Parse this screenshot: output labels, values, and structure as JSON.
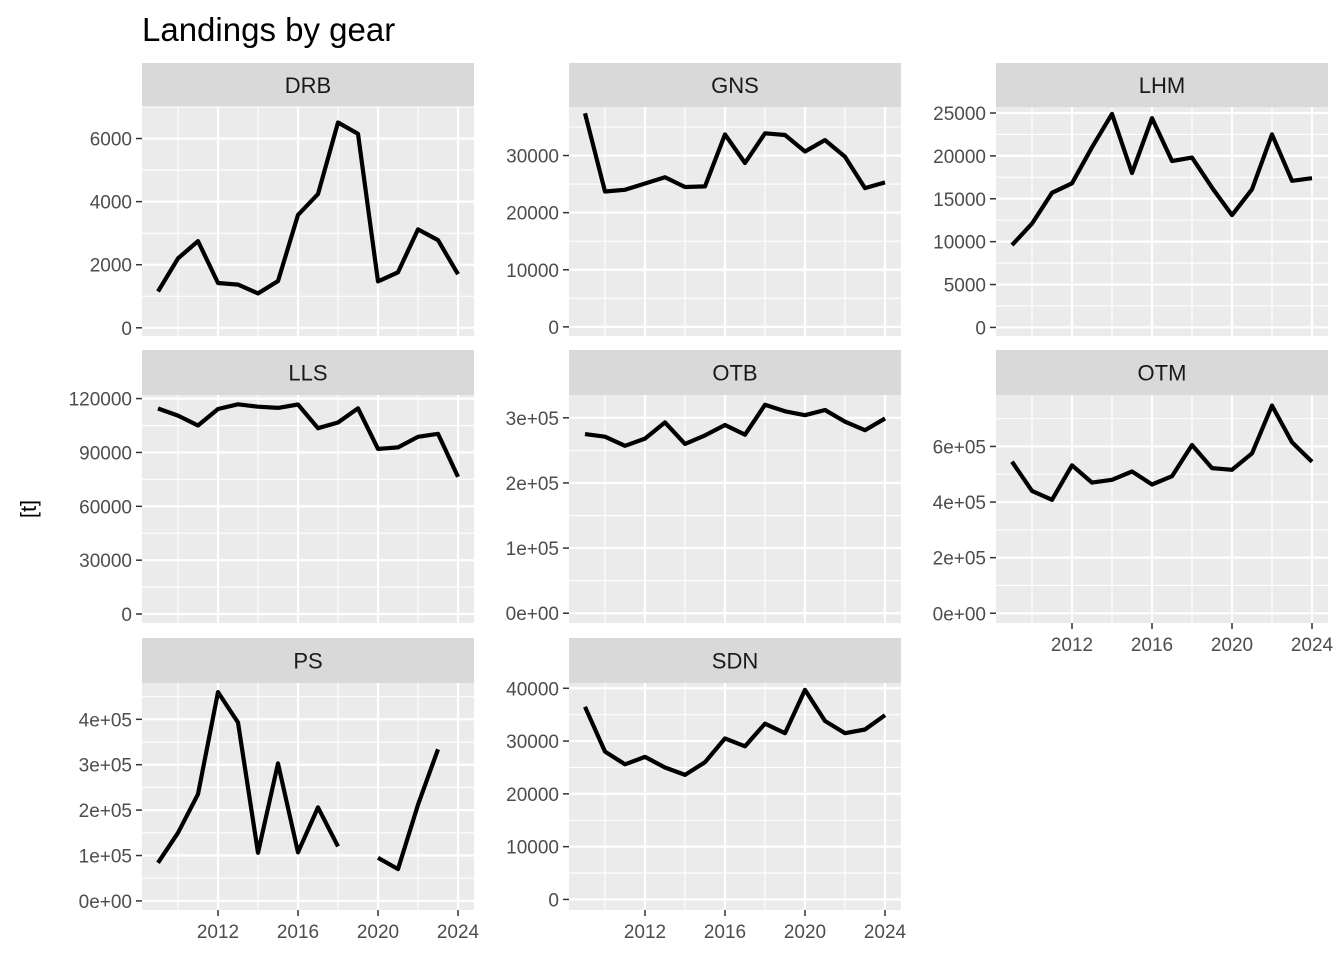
{
  "chart_data": {
    "type": "line",
    "title": "Landings by gear",
    "xlabel": "",
    "ylabel": "[t]",
    "layout": "facet_wrap, 3 columns, free y scales",
    "theme": "grey panel background, white grid lines",
    "line_color": "#000000",
    "x_ticks": [
      2012,
      2016,
      2020,
      2024
    ],
    "x": [
      2009,
      2010,
      2011,
      2012,
      2013,
      2014,
      2015,
      2016,
      2017,
      2018,
      2019,
      2020,
      2021,
      2022,
      2023,
      2024
    ],
    "panels": [
      {
        "name": "DRB",
        "yticks": [
          0,
          2000,
          4000,
          6000
        ],
        "yticklabels": [
          "0",
          "2000",
          "4000",
          "6000"
        ],
        "ylim": [
          -260,
          7000
        ],
        "values": [
          1150,
          2200,
          2750,
          1420,
          1370,
          1090,
          1480,
          3580,
          4240,
          6510,
          6150,
          1470,
          1760,
          3120,
          2780,
          1700
        ]
      },
      {
        "name": "GNS",
        "yticks": [
          0,
          10000,
          20000,
          30000
        ],
        "yticklabels": [
          "0",
          "10000",
          "20000",
          "30000"
        ],
        "ylim": [
          -1600,
          38500
        ],
        "values": [
          37400,
          23700,
          24000,
          25100,
          26200,
          24500,
          24600,
          33700,
          28700,
          33900,
          33600,
          30700,
          32700,
          29800,
          24300,
          25300
        ]
      },
      {
        "name": "LHM",
        "yticks": [
          0,
          5000,
          10000,
          15000,
          20000,
          25000
        ],
        "yticklabels": [
          "0",
          "5000",
          "10000",
          "15000",
          "20000",
          "25000"
        ],
        "ylim": [
          -1000,
          25700
        ],
        "values": [
          9600,
          12100,
          15700,
          16800,
          21000,
          24900,
          18000,
          24400,
          19400,
          19800,
          16300,
          13100,
          16100,
          22500,
          17100,
          17400
        ]
      },
      {
        "name": "LLS",
        "yticks": [
          0,
          30000,
          60000,
          90000,
          120000
        ],
        "yticklabels": [
          "0",
          "30000",
          "60000",
          "90000",
          "120000"
        ],
        "ylim": [
          -5000,
          122000
        ],
        "values": [
          114500,
          110500,
          105000,
          114200,
          116800,
          115500,
          114800,
          116700,
          103500,
          106700,
          114600,
          92000,
          92800,
          98700,
          100400,
          76400
        ]
      },
      {
        "name": "OTB",
        "yticks": [
          0,
          100000,
          200000,
          300000
        ],
        "yticklabels": [
          "0e+00",
          "1e+05",
          "2e+05",
          "3e+05"
        ],
        "ylim": [
          -15000,
          335000
        ],
        "values": [
          275000,
          271000,
          257000,
          268000,
          293000,
          260000,
          273000,
          289000,
          274000,
          320000,
          310000,
          304000,
          312000,
          294000,
          281000,
          299000
        ]
      },
      {
        "name": "OTM",
        "yticks": [
          0,
          200000,
          400000,
          600000
        ],
        "yticklabels": [
          "0e+00",
          "2e+05",
          "4e+05",
          "6e+05"
        ],
        "ylim": [
          -35000,
          785000
        ],
        "values": [
          545000,
          440000,
          408000,
          532000,
          470000,
          480000,
          510000,
          463000,
          493000,
          605000,
          522000,
          516000,
          575000,
          747000,
          615000,
          545000
        ]
      },
      {
        "name": "PS",
        "yticks": [
          0,
          100000,
          200000,
          300000,
          400000
        ],
        "yticklabels": [
          "0e+00",
          "1e+05",
          "2e+05",
          "3e+05",
          "4e+05"
        ],
        "ylim": [
          -20000,
          480000
        ],
        "values": [
          84000,
          150000,
          235000,
          460000,
          393000,
          106000,
          303000,
          107000,
          206000,
          120000,
          null,
          95000,
          70000,
          212000,
          334000,
          null
        ]
      },
      {
        "name": "SDN",
        "yticks": [
          0,
          10000,
          20000,
          30000,
          40000
        ],
        "yticklabels": [
          "0",
          "10000",
          "20000",
          "30000",
          "40000"
        ],
        "ylim": [
          -2000,
          41000
        ],
        "values": [
          36500,
          28000,
          25600,
          27000,
          25000,
          23600,
          26000,
          30500,
          29000,
          33300,
          31500,
          39700,
          33800,
          31500,
          32200,
          34900
        ]
      }
    ]
  }
}
